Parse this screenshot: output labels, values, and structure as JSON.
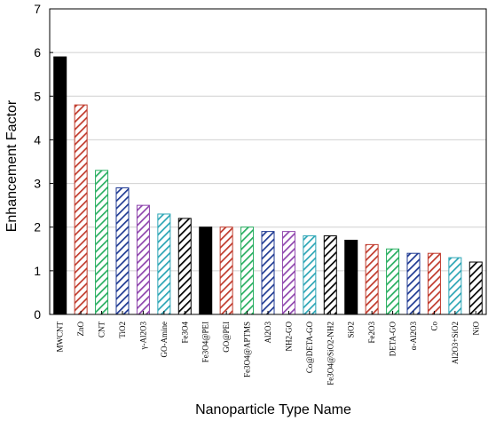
{
  "chart_data": {
    "type": "bar",
    "title": "",
    "xlabel": "Nanoparticle Type Name",
    "ylabel": "Enhancement Factor",
    "ylim": [
      0,
      7
    ],
    "yticks": [
      0,
      1,
      2,
      3,
      4,
      5,
      6,
      7
    ],
    "grid": "horizontal",
    "categories": [
      "MWCNT",
      "ZnO",
      "CNT",
      "TiO2",
      "γ-Al2O3",
      "GO-Amine",
      "Fe3O4",
      "Fe3O4@PEI",
      "GO@PEI",
      "Fe3O4@APTMS",
      "Al2O3",
      "NH2-GO",
      "Co@DETA-GO",
      "Fe3O4@SiO2-NH2",
      "SiO2",
      "Fe2O3",
      "DETA-GO",
      "α-Al2O3",
      "Co",
      "Al2O3+SiO2",
      "NiO"
    ],
    "values": [
      5.9,
      4.8,
      3.3,
      2.9,
      2.5,
      2.3,
      2.2,
      2.0,
      2.0,
      2.0,
      1.9,
      1.9,
      1.8,
      1.8,
      1.7,
      1.6,
      1.5,
      1.4,
      1.4,
      1.3,
      1.2
    ],
    "bar_colors": [
      "#000000",
      "#c0392b",
      "#27ae60",
      "#1f3a93",
      "#8e44ad",
      "#2aa5b5",
      "#000000",
      "#000000",
      "#c0392b",
      "#27ae60",
      "#1f3a93",
      "#8e44ad",
      "#2aa5b5",
      "#000000",
      "#000000",
      "#c0392b",
      "#27ae60",
      "#1f3a93",
      "#c0392b",
      "#2aa5b5",
      "#000000"
    ],
    "bar_pattern": [
      "solid",
      "hatch",
      "hatch",
      "hatch",
      "hatch",
      "hatch",
      "hatch",
      "solid",
      "hatch",
      "hatch",
      "hatch",
      "hatch",
      "hatch",
      "hatch",
      "solid",
      "hatch",
      "hatch",
      "hatch",
      "hatch",
      "hatch",
      "hatch"
    ]
  }
}
